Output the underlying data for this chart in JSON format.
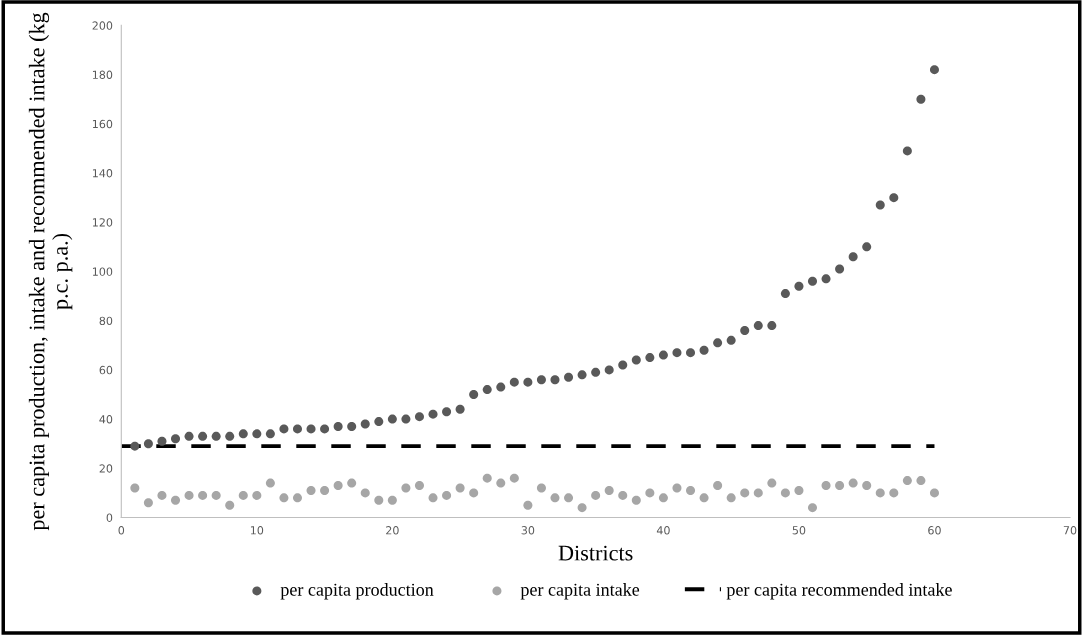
{
  "chart_data": {
    "type": "scatter",
    "xlabel": "Districts",
    "ylabel": "per capita production, intake and recommended intake (kg p.c. p.a.)",
    "xlim": [
      0,
      70
    ],
    "xticks": [
      0,
      10,
      20,
      30,
      40,
      50,
      60,
      70
    ],
    "ylim": [
      0,
      200
    ],
    "yticks": [
      0,
      20,
      40,
      60,
      80,
      100,
      120,
      140,
      160,
      180,
      200
    ],
    "grid": false,
    "legend": "bottom",
    "marker": "circle",
    "x": [
      1,
      2,
      3,
      4,
      5,
      6,
      7,
      8,
      9,
      10,
      11,
      12,
      13,
      14,
      15,
      16,
      17,
      18,
      19,
      20,
      21,
      22,
      23,
      24,
      25,
      26,
      27,
      28,
      29,
      30,
      31,
      32,
      33,
      34,
      35,
      36,
      37,
      38,
      39,
      40,
      41,
      42,
      43,
      44,
      45,
      46,
      47,
      48,
      49,
      50,
      51,
      52,
      53,
      54,
      55,
      56,
      57,
      58,
      59,
      60
    ],
    "series": [
      {
        "name": "per capita production",
        "color": "#595959",
        "values": [
          29,
          30,
          31,
          32,
          33,
          33,
          33,
          33,
          34,
          34,
          34,
          36,
          36,
          36,
          36,
          37,
          37,
          38,
          39,
          40,
          40,
          41,
          42,
          43,
          44,
          50,
          52,
          53,
          55,
          55,
          56,
          56,
          57,
          58,
          59,
          60,
          62,
          64,
          65,
          66,
          67,
          67,
          68,
          71,
          72,
          76,
          78,
          78,
          91,
          94,
          96,
          97,
          101,
          106,
          110,
          127,
          130,
          149,
          170,
          182
        ]
      },
      {
        "name": "per capita intake",
        "color": "#a6a6a6",
        "values": [
          12,
          6,
          9,
          7,
          9,
          9,
          9,
          5,
          9,
          9,
          14,
          8,
          8,
          11,
          11,
          13,
          14,
          10,
          7,
          7,
          12,
          13,
          8,
          9,
          12,
          10,
          16,
          14,
          16,
          5,
          12,
          8,
          8,
          4,
          9,
          11,
          9,
          7,
          10,
          8,
          12,
          11,
          8,
          13,
          8,
          10,
          10,
          14,
          10,
          11,
          4,
          13,
          13,
          14,
          13,
          10,
          10,
          15,
          15,
          10
        ]
      },
      {
        "name": "per capita recommended intake",
        "type": "line",
        "color": "#000000",
        "x": [
          0,
          60
        ],
        "values": [
          29,
          29
        ],
        "line_style": "dashed",
        "marker": "none"
      }
    ]
  }
}
